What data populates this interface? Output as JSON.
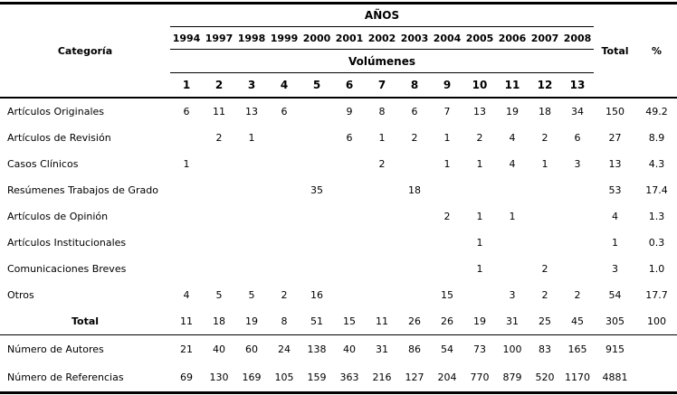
{
  "chart_data": {
    "type": "table",
    "title": "",
    "header": {
      "category_label": "Categoría",
      "years_group_label": "AÑOS",
      "volumes_group_label": "Volúmenes",
      "years": [
        "1994",
        "1997",
        "1998",
        "1999",
        "2000",
        "2001",
        "2002",
        "2003",
        "2004",
        "2005",
        "2006",
        "2007",
        "2008"
      ],
      "volumes": [
        "1",
        "2",
        "3",
        "4",
        "5",
        "6",
        "7",
        "8",
        "9",
        "10",
        "11",
        "12",
        "13"
      ],
      "total_label": "Total",
      "percent_label": "%"
    },
    "rows": [
      {
        "label": "Artículos Originales",
        "type": "data",
        "values": [
          "6",
          "11",
          "13",
          "6",
          "",
          "9",
          "8",
          "6",
          "7",
          "13",
          "19",
          "18",
          "34"
        ],
        "total": "150",
        "percent": "49.2"
      },
      {
        "label": "Artículos de Revisión",
        "type": "data",
        "values": [
          "",
          "2",
          "1",
          "",
          "",
          "6",
          "1",
          "2",
          "1",
          "2",
          "4",
          "2",
          "6"
        ],
        "total": "27",
        "percent": "8.9"
      },
      {
        "label": "Casos Clínicos",
        "type": "data",
        "values": [
          "1",
          "",
          "",
          "",
          "",
          "",
          "2",
          "",
          "1",
          "1",
          "4",
          "1",
          "3"
        ],
        "total": "13",
        "percent": "4.3"
      },
      {
        "label": "Resúmenes Trabajos de Grado",
        "type": "data",
        "values": [
          "",
          "",
          "",
          "",
          "35",
          "",
          "",
          "18",
          "",
          "",
          "",
          "",
          ""
        ],
        "total": "53",
        "percent": "17.4"
      },
      {
        "label": "Artículos de Opinión",
        "type": "data",
        "values": [
          "",
          "",
          "",
          "",
          "",
          "",
          "",
          "",
          "2",
          "1",
          "1",
          "",
          ""
        ],
        "total": "4",
        "percent": "1.3"
      },
      {
        "label": "Artículos Institucionales",
        "type": "data",
        "values": [
          "",
          "",
          "",
          "",
          "",
          "",
          "",
          "",
          "",
          "1",
          "",
          "",
          ""
        ],
        "total": "1",
        "percent": "0.3"
      },
      {
        "label": "Comunicaciones Breves",
        "type": "data",
        "values": [
          "",
          "",
          "",
          "",
          "",
          "",
          "",
          "",
          "",
          "1",
          "",
          "2",
          ""
        ],
        "total": "3",
        "percent": "1.0"
      },
      {
        "label": "Otros",
        "type": "data",
        "values": [
          "4",
          "5",
          "5",
          "2",
          "16",
          "",
          "",
          "",
          "15",
          "",
          "3",
          "2",
          "2"
        ],
        "total": "54",
        "percent": "17.7"
      },
      {
        "label": "Total",
        "type": "total",
        "values": [
          "11",
          "18",
          "19",
          "8",
          "51",
          "15",
          "11",
          "26",
          "26",
          "19",
          "31",
          "25",
          "45"
        ],
        "total": "305",
        "percent": "100"
      },
      {
        "label": "Número de Autores",
        "type": "footer",
        "values": [
          "21",
          "40",
          "60",
          "24",
          "138",
          "40",
          "31",
          "86",
          "54",
          "73",
          "100",
          "83",
          "165"
        ],
        "total": "915",
        "percent": ""
      },
      {
        "label": "Número de Referencias",
        "type": "footer",
        "values": [
          "69",
          "130",
          "169",
          "105",
          "159",
          "363",
          "216",
          "127",
          "204",
          "770",
          "879",
          "520",
          "1170"
        ],
        "total": "4881",
        "percent": ""
      }
    ]
  }
}
